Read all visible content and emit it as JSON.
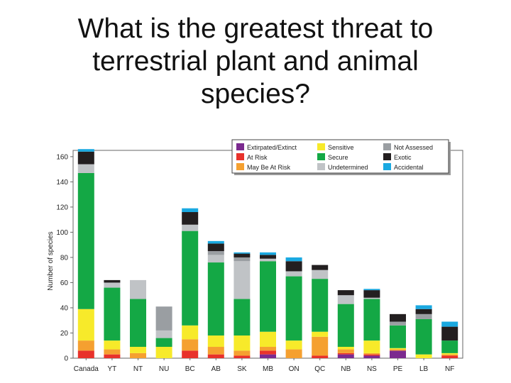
{
  "slide": {
    "title": "What is the greatest threat to\nterrestrial plant and animal\nspecies?"
  },
  "chart_data": {
    "type": "bar",
    "stacked": true,
    "ylabel": "Number of species",
    "xlabel": "",
    "ylim": [
      0,
      165
    ],
    "yticks": [
      0,
      20,
      40,
      60,
      80,
      100,
      120,
      140,
      160
    ],
    "legend_position": "top-right",
    "categories": [
      "Canada",
      "YT",
      "NT",
      "NU",
      "BC",
      "AB",
      "SK",
      "MB",
      "ON",
      "QC",
      "NB",
      "NS",
      "PE",
      "LB",
      "NF"
    ],
    "series": [
      {
        "name": "Extirpated/Extinct",
        "color": "#7b2a8f",
        "values": [
          0,
          0,
          0,
          0,
          0,
          0,
          0,
          3,
          0,
          0,
          3,
          2,
          6,
          0,
          0
        ]
      },
      {
        "name": "At Risk",
        "color": "#e8322b",
        "values": [
          6,
          3,
          0,
          0,
          6,
          3,
          2,
          3,
          0,
          2,
          1,
          1,
          0,
          0,
          2
        ]
      },
      {
        "name": "May Be At Risk",
        "color": "#f5a030",
        "values": [
          8,
          4,
          4,
          0,
          9,
          6,
          4,
          3,
          7,
          15,
          3,
          1,
          1,
          0,
          1
        ]
      },
      {
        "name": "Sensitive",
        "color": "#f7ea2a",
        "values": [
          25,
          7,
          5,
          9,
          11,
          9,
          12,
          12,
          7,
          4,
          2,
          10,
          1,
          3,
          1
        ]
      },
      {
        "name": "Secure",
        "color": "#14a845",
        "values": [
          108,
          42,
          38,
          7,
          75,
          58,
          29,
          56,
          51,
          42,
          34,
          33,
          18,
          28,
          10
        ]
      },
      {
        "name": "Undetermined",
        "color": "#c0c3c6",
        "values": [
          7,
          4,
          15,
          6,
          5,
          6,
          30,
          2,
          4,
          7,
          7,
          1,
          0,
          0,
          0
        ]
      },
      {
        "name": "Not Assessed",
        "color": "#9a9ea2",
        "values": [
          0,
          0,
          0,
          19,
          0,
          3,
          3,
          0,
          0,
          0,
          0,
          0,
          3,
          4,
          0
        ]
      },
      {
        "name": "Exotic",
        "color": "#231f20",
        "values": [
          10,
          2,
          0,
          0,
          10,
          6,
          3,
          3,
          8,
          4,
          4,
          6,
          6,
          4,
          11
        ]
      },
      {
        "name": "Accidental",
        "color": "#1aa9e1",
        "values": [
          2,
          0,
          0,
          0,
          3,
          2,
          1,
          2,
          3,
          0,
          0,
          1,
          0,
          3,
          4
        ]
      }
    ]
  }
}
